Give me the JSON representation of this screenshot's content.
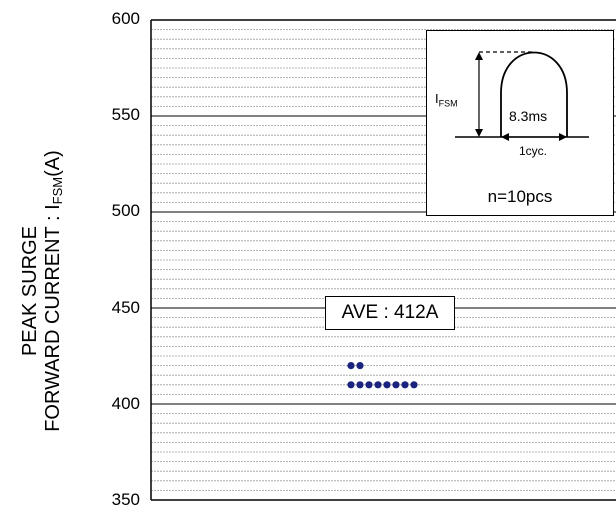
{
  "chart_data": {
    "type": "scatter",
    "ylabel_line1": "PEAK SURGE",
    "ylabel_line2_prefix": "FORWARD CURRENT : I",
    "ylabel_sub": "FSM",
    "ylabel_suffix": "(A)",
    "ylim": [
      350,
      600
    ],
    "yticks": [
      "350",
      "400",
      "450",
      "500",
      "550",
      "600"
    ],
    "major_step": 50,
    "minor_step": 5,
    "points": [
      {
        "sample": 1,
        "value": 420
      },
      {
        "sample": 2,
        "value": 420
      },
      {
        "sample": 3,
        "value": 410
      },
      {
        "sample": 4,
        "value": 410
      },
      {
        "sample": 5,
        "value": 410
      },
      {
        "sample": 6,
        "value": 410
      },
      {
        "sample": 7,
        "value": 410
      },
      {
        "sample": 8,
        "value": 410
      },
      {
        "sample": 9,
        "value": 410
      },
      {
        "sample": 10,
        "value": 410
      }
    ],
    "point_color": "#1a237e",
    "annotation": "AVE : 412A",
    "inset": {
      "ifsm_label_main": "I",
      "ifsm_label_sub": "FSM",
      "pulse_width": "8.3ms",
      "cycle": "1cyc.",
      "count": "n=10pcs"
    }
  }
}
